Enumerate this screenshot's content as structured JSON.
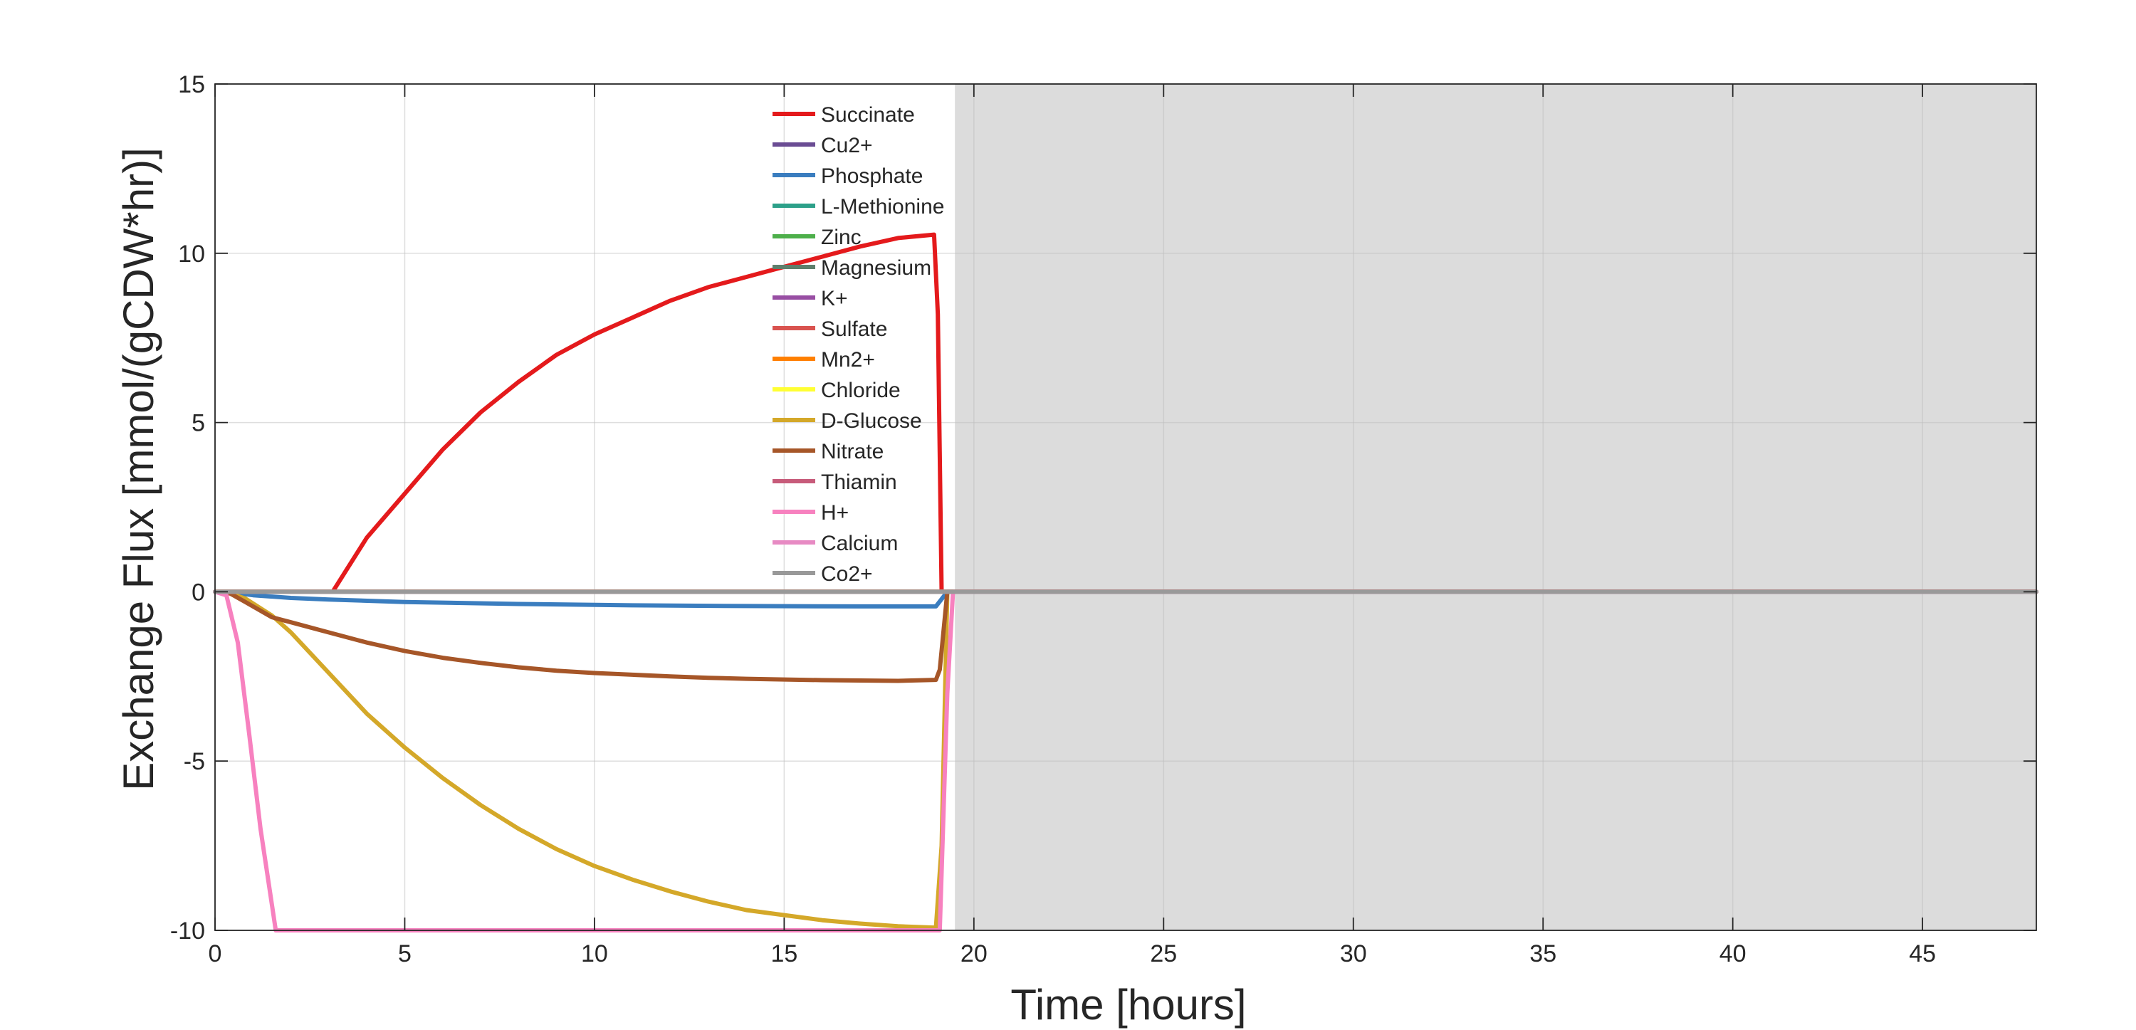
{
  "chart_data": {
    "type": "line",
    "xlabel": "Time [hours]",
    "ylabel": "Exchange Flux [mmol/(gCDW*hr)]",
    "xlim": [
      0,
      48
    ],
    "ylim": [
      -10,
      15
    ],
    "xticks": [
      0,
      5,
      10,
      15,
      20,
      25,
      30,
      35,
      40,
      45
    ],
    "yticks": [
      -10,
      -5,
      0,
      5,
      10,
      15
    ],
    "grid": true,
    "legend_position": "top-center inside",
    "shaded_region": {
      "x": [
        19.5,
        48
      ],
      "color": "#dcdcdc"
    },
    "series": [
      {
        "name": "Succinate",
        "color": "#e41a1c",
        "points": [
          [
            0,
            0
          ],
          [
            3.1,
            0
          ],
          [
            4,
            1.6
          ],
          [
            5,
            2.9
          ],
          [
            6,
            4.2
          ],
          [
            7,
            5.3
          ],
          [
            8,
            6.2
          ],
          [
            9,
            7.0
          ],
          [
            10,
            7.6
          ],
          [
            11,
            8.1
          ],
          [
            12,
            8.6
          ],
          [
            13,
            9.0
          ],
          [
            14,
            9.3
          ],
          [
            15,
            9.6
          ],
          [
            16,
            9.9
          ],
          [
            17,
            10.2
          ],
          [
            18,
            10.45
          ],
          [
            18.95,
            10.55
          ],
          [
            19.05,
            8.2
          ],
          [
            19.15,
            0
          ],
          [
            48,
            0
          ]
        ]
      },
      {
        "name": "Cu2+",
        "color": "#6a4c93",
        "points": [
          [
            0,
            0
          ],
          [
            48,
            0
          ]
        ]
      },
      {
        "name": "Phosphate",
        "color": "#3a7dbf",
        "points": [
          [
            0,
            0
          ],
          [
            0.5,
            -0.03
          ],
          [
            1,
            -0.1
          ],
          [
            2,
            -0.18
          ],
          [
            3,
            -0.23
          ],
          [
            5,
            -0.3
          ],
          [
            8,
            -0.36
          ],
          [
            11,
            -0.4
          ],
          [
            14,
            -0.42
          ],
          [
            17,
            -0.43
          ],
          [
            19,
            -0.43
          ],
          [
            19.3,
            0
          ],
          [
            48,
            0
          ]
        ]
      },
      {
        "name": "L-Methionine",
        "color": "#2ca089",
        "points": [
          [
            0,
            0
          ],
          [
            48,
            0
          ]
        ]
      },
      {
        "name": "Zinc",
        "color": "#4daf4a",
        "points": [
          [
            0,
            0
          ],
          [
            48,
            0
          ]
        ]
      },
      {
        "name": "Magnesium",
        "color": "#5e7f6c",
        "points": [
          [
            0,
            0
          ],
          [
            48,
            0
          ]
        ]
      },
      {
        "name": "K+",
        "color": "#984ea3",
        "points": [
          [
            0,
            0
          ],
          [
            48,
            0
          ]
        ]
      },
      {
        "name": "Sulfate",
        "color": "#d9534f",
        "points": [
          [
            0,
            0
          ],
          [
            48,
            0
          ]
        ]
      },
      {
        "name": "Mn2+",
        "color": "#ff7f00",
        "points": [
          [
            0,
            0
          ],
          [
            48,
            0
          ]
        ]
      },
      {
        "name": "Chloride",
        "color": "#ffff33",
        "points": [
          [
            0,
            0
          ],
          [
            48,
            0
          ]
        ]
      },
      {
        "name": "D-Glucose",
        "color": "#d4a829",
        "points": [
          [
            0,
            0
          ],
          [
            0.4,
            -0.05
          ],
          [
            0.8,
            -0.2
          ],
          [
            1.5,
            -0.7
          ],
          [
            2,
            -1.2
          ],
          [
            3,
            -2.4
          ],
          [
            4,
            -3.6
          ],
          [
            5,
            -4.6
          ],
          [
            6,
            -5.5
          ],
          [
            7,
            -6.3
          ],
          [
            8,
            -7.0
          ],
          [
            9,
            -7.6
          ],
          [
            10,
            -8.1
          ],
          [
            11,
            -8.5
          ],
          [
            12,
            -8.85
          ],
          [
            13,
            -9.15
          ],
          [
            14,
            -9.4
          ],
          [
            15,
            -9.55
          ],
          [
            16,
            -9.7
          ],
          [
            17,
            -9.8
          ],
          [
            18,
            -9.88
          ],
          [
            19,
            -9.92
          ],
          [
            19.15,
            -7.5
          ],
          [
            19.3,
            0
          ],
          [
            48,
            0
          ]
        ]
      },
      {
        "name": "Nitrate",
        "color": "#a65628",
        "points": [
          [
            0,
            0
          ],
          [
            0.4,
            -0.05
          ],
          [
            0.8,
            -0.3
          ],
          [
            1.5,
            -0.75
          ],
          [
            2,
            -0.9
          ],
          [
            3,
            -1.2
          ],
          [
            4,
            -1.5
          ],
          [
            5,
            -1.75
          ],
          [
            6,
            -1.95
          ],
          [
            7,
            -2.1
          ],
          [
            8,
            -2.23
          ],
          [
            9,
            -2.33
          ],
          [
            10,
            -2.4
          ],
          [
            11,
            -2.45
          ],
          [
            12,
            -2.5
          ],
          [
            13,
            -2.54
          ],
          [
            14,
            -2.57
          ],
          [
            15,
            -2.59
          ],
          [
            16,
            -2.61
          ],
          [
            17,
            -2.62
          ],
          [
            18,
            -2.63
          ],
          [
            19,
            -2.6
          ],
          [
            19.1,
            -2.3
          ],
          [
            19.3,
            0
          ],
          [
            48,
            0
          ]
        ]
      },
      {
        "name": "Thiamin",
        "color": "#c75b7a",
        "points": [
          [
            0,
            0
          ],
          [
            48,
            0
          ]
        ]
      },
      {
        "name": "H+",
        "color": "#f781bf",
        "points": [
          [
            0,
            0
          ],
          [
            0.3,
            -0.1
          ],
          [
            0.6,
            -1.5
          ],
          [
            0.9,
            -4.2
          ],
          [
            1.2,
            -7.0
          ],
          [
            1.6,
            -10
          ],
          [
            19.1,
            -10
          ],
          [
            19.3,
            -3
          ],
          [
            19.45,
            0
          ],
          [
            48,
            0
          ]
        ]
      },
      {
        "name": "Calcium",
        "color": "#e78ac3",
        "points": [
          [
            0,
            0
          ],
          [
            48,
            0
          ]
        ]
      },
      {
        "name": "Co2+",
        "color": "#999999",
        "points": [
          [
            0,
            0
          ],
          [
            48,
            0
          ]
        ]
      }
    ]
  }
}
